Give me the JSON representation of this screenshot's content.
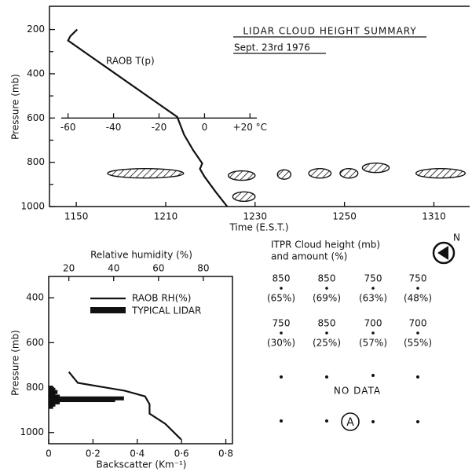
{
  "chart_data": [
    {
      "type": "line",
      "title": "LIDAR CLOUD HEIGHT SUMMARY",
      "subtitle": "Sept. 23rd 1976",
      "ylabel": "Pressure (mb)",
      "xlabel": "Time (E.S.T.)",
      "ylim": [
        1000,
        95
      ],
      "yticks": [
        200,
        400,
        600,
        800,
        1000
      ],
      "yminorticks": [
        300,
        500,
        700,
        900
      ],
      "xlim": [
        1144,
        1318
      ],
      "xticks": [
        1150,
        1210,
        1230,
        1250,
        1310
      ],
      "t2lim": [
        -63,
        23
      ],
      "t2ticks": [
        -60,
        -40,
        -20,
        0,
        {
          "value": 20,
          "label": "+20 °C"
        }
      ],
      "t2axis_pressure": 600,
      "series": [
        {
          "name": "RAOB T(p)",
          "color": "#111111",
          "x": [
            -56,
            -59,
            -60,
            -12,
            -9,
            -5,
            -1,
            -2,
            0,
            5,
            10
          ],
          "values": [
            200,
            230,
            250,
            595,
            675,
            745,
            805,
            830,
            865,
            935,
            1000
          ]
        }
      ],
      "clouds": [
        {
          "start": 1157,
          "end": 1214,
          "pressure": 850
        },
        {
          "start": 1224,
          "end": 1230,
          "pressure": 860
        },
        {
          "start": 1235,
          "end": 1238,
          "pressure": 855
        },
        {
          "start": 1242,
          "end": 1247,
          "pressure": 850
        },
        {
          "start": 1249,
          "end": 1253,
          "pressure": 850
        },
        {
          "start": 1254,
          "end": 1260,
          "pressure": 825
        },
        {
          "start": 1306,
          "end": 1317,
          "pressure": 850
        },
        {
          "start": 1225,
          "end": 1230,
          "pressure": 955
        }
      ]
    },
    {
      "type": "line",
      "ylabel": "Pressure (mb)",
      "xlabel": "Backscatter (Km⁻¹)",
      "x2label": "Relative humidity (%)",
      "ylim": [
        1050,
        305
      ],
      "yticks": [
        400,
        600,
        800,
        1000
      ],
      "xlim": [
        0,
        0.83
      ],
      "xticks": [
        0,
        {
          "value": 0.2,
          "label": "0·2"
        },
        {
          "value": 0.4,
          "label": "0·4"
        },
        {
          "value": 0.6,
          "label": "0·6"
        },
        {
          "value": 0.8,
          "label": "0·8"
        }
      ],
      "x2lim": [
        11,
        93
      ],
      "x2ticks": [
        20,
        40,
        60,
        80
      ],
      "series": [
        {
          "name": "RAOB RH(%)",
          "color": "#111111",
          "axis": "x2",
          "x": [
            20,
            24,
            45,
            54,
            56,
            56,
            63,
            70
          ],
          "values": [
            730,
            779,
            814,
            839,
            874,
            916,
            961,
            1030
          ]
        },
        {
          "name": "TYPICAL LIDAR",
          "color": "#111111",
          "type": "bar",
          "pressures": [
            800,
            810,
            820,
            830,
            840,
            848,
            856,
            866,
            876,
            886
          ],
          "values": [
            0.02,
            0.03,
            0.04,
            0.03,
            0.05,
            0.34,
            0.3,
            0.05,
            0.03,
            0.02
          ]
        }
      ]
    }
  ],
  "itpr": {
    "title": [
      "ITPR Cloud height (mb)",
      "and amount (%)"
    ],
    "north": "N",
    "no_data": "NO DATA",
    "marker": "A",
    "rows": [
      [
        {
          "height": "850",
          "amount": "(65%)"
        },
        {
          "height": "850",
          "amount": "(69%)"
        },
        {
          "height": "750",
          "amount": "(63%)"
        },
        {
          "height": "750",
          "amount": "(48%)"
        }
      ],
      [
        {
          "height": "750",
          "amount": "(30%)"
        },
        {
          "height": "850",
          "amount": "(25%)"
        },
        {
          "height": "700",
          "amount": "(57%)"
        },
        {
          "height": "700",
          "amount": "(55%)"
        }
      ]
    ]
  }
}
